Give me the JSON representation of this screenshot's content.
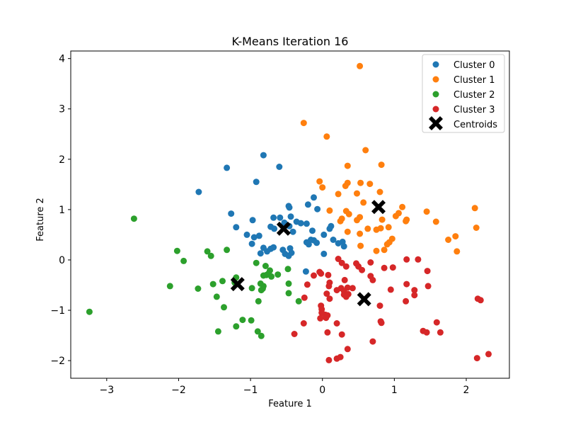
{
  "chart_data": {
    "type": "scatter",
    "title": "K-Means Iteration 16",
    "xlabel": "Feature 1",
    "ylabel": "Feature 2",
    "xlim": [
      -3.5,
      2.6
    ],
    "ylim": [
      -2.35,
      4.15
    ],
    "xticks": [
      -3,
      -2,
      -1,
      0,
      1,
      2
    ],
    "yticks": [
      -2,
      -1,
      0,
      1,
      2,
      3,
      4
    ],
    "xtick_labels": [
      "−3",
      "−2",
      "−1",
      "0",
      "1",
      "2"
    ],
    "ytick_labels": [
      "−2",
      "−1",
      "0",
      "1",
      "2",
      "3",
      "4"
    ],
    "grid": false,
    "legend_position": "top-right",
    "series": [
      {
        "name": "Cluster 0",
        "color": "#1f77b4",
        "points": [
          [
            -1.72,
            1.35
          ],
          [
            -1.33,
            1.83
          ],
          [
            -0.92,
            1.55
          ],
          [
            -0.82,
            2.08
          ],
          [
            -0.6,
            1.85
          ],
          [
            -1.27,
            0.92
          ],
          [
            -1.2,
            0.65
          ],
          [
            -1.05,
            0.5
          ],
          [
            -0.98,
            0.32
          ],
          [
            -0.95,
            0.45
          ],
          [
            -0.88,
            0.48
          ],
          [
            -0.97,
            0.79
          ],
          [
            -0.72,
            0.66
          ],
          [
            -0.67,
            0.62
          ],
          [
            -0.68,
            0.84
          ],
          [
            -0.59,
            0.84
          ],
          [
            -0.53,
            0.74
          ],
          [
            -0.46,
            0.67
          ],
          [
            -0.44,
            0.86
          ],
          [
            -0.47,
            1.07
          ],
          [
            -0.46,
            1.04
          ],
          [
            -0.41,
            0.56
          ],
          [
            -0.36,
            0.76
          ],
          [
            -0.3,
            0.73
          ],
          [
            -0.22,
            0.72
          ],
          [
            -0.2,
            1.1
          ],
          [
            -0.12,
            1.24
          ],
          [
            -0.07,
            1.01
          ],
          [
            -0.14,
            0.58
          ],
          [
            0.02,
            0.5
          ],
          [
            0.1,
            0.62
          ],
          [
            0.12,
            0.67
          ],
          [
            -0.22,
            0.35
          ],
          [
            -0.19,
            0.31
          ],
          [
            -0.16,
            0.4
          ],
          [
            -0.12,
            0.39
          ],
          [
            -0.08,
            0.34
          ],
          [
            0.02,
            0.12
          ],
          [
            0.15,
            0.4
          ],
          [
            0.22,
            0.33
          ],
          [
            0.28,
            0.36
          ],
          [
            0.3,
            0.27
          ],
          [
            -0.82,
            0.24
          ],
          [
            -0.77,
            0.17
          ],
          [
            -0.72,
            0.22
          ],
          [
            -0.68,
            0.25
          ],
          [
            -0.86,
            0.13
          ],
          [
            -0.52,
            0.12
          ],
          [
            -0.47,
            0.08
          ],
          [
            -0.45,
            0.23
          ],
          [
            -0.43,
            0.14
          ],
          [
            -0.55,
            0.2
          ],
          [
            -0.23,
            -0.23
          ]
        ]
      },
      {
        "name": "Cluster 1",
        "color": "#ff7f0e",
        "points": [
          [
            0.52,
            3.85
          ],
          [
            -0.26,
            2.72
          ],
          [
            0.06,
            2.45
          ],
          [
            0.6,
            2.18
          ],
          [
            0.35,
            1.87
          ],
          [
            0.82,
            1.89
          ],
          [
            -0.04,
            1.56
          ],
          [
            0.0,
            1.44
          ],
          [
            0.35,
            1.53
          ],
          [
            0.32,
            1.47
          ],
          [
            0.53,
            1.53
          ],
          [
            0.66,
            1.51
          ],
          [
            0.22,
            1.31
          ],
          [
            0.8,
            1.35
          ],
          [
            0.48,
            1.32
          ],
          [
            0.1,
            0.98
          ],
          [
            0.33,
            0.97
          ],
          [
            0.57,
            1.14
          ],
          [
            0.48,
            0.79
          ],
          [
            0.27,
            0.82
          ],
          [
            0.25,
            0.77
          ],
          [
            0.37,
            0.91
          ],
          [
            0.52,
            0.85
          ],
          [
            0.35,
            0.56
          ],
          [
            0.52,
            0.52
          ],
          [
            0.63,
            0.62
          ],
          [
            0.75,
            0.6
          ],
          [
            0.81,
            0.63
          ],
          [
            0.83,
            0.8
          ],
          [
            0.92,
            0.65
          ],
          [
            1.02,
            0.87
          ],
          [
            1.06,
            0.93
          ],
          [
            1.11,
            1.05
          ],
          [
            1.17,
            0.8
          ],
          [
            1.16,
            0.77
          ],
          [
            1.45,
            0.96
          ],
          [
            1.58,
            0.76
          ],
          [
            0.97,
            0.42
          ],
          [
            0.93,
            0.35
          ],
          [
            0.9,
            0.31
          ],
          [
            0.86,
            0.2
          ],
          [
            0.75,
            0.18
          ],
          [
            0.53,
            0.28
          ],
          [
            1.75,
            0.4
          ],
          [
            1.85,
            0.47
          ],
          [
            1.87,
            0.17
          ],
          [
            2.12,
            1.03
          ],
          [
            2.14,
            0.64
          ]
        ]
      },
      {
        "name": "Cluster 2",
        "color": "#2ca02c",
        "points": [
          [
            -2.62,
            0.82
          ],
          [
            -2.02,
            0.18
          ],
          [
            -1.93,
            -0.02
          ],
          [
            -1.6,
            0.17
          ],
          [
            -1.55,
            0.08
          ],
          [
            -1.33,
            0.2
          ],
          [
            -0.92,
            -0.06
          ],
          [
            -0.79,
            -0.12
          ],
          [
            -0.73,
            -0.21
          ],
          [
            -0.75,
            -0.27
          ],
          [
            -0.78,
            -0.3
          ],
          [
            -0.82,
            -0.31
          ],
          [
            -0.71,
            -0.33
          ],
          [
            -0.62,
            -0.29
          ],
          [
            -0.48,
            -0.18
          ],
          [
            -0.86,
            -0.47
          ],
          [
            -0.82,
            -0.52
          ],
          [
            -0.83,
            -0.57
          ],
          [
            -0.85,
            -0.6
          ],
          [
            -1.2,
            -0.35
          ],
          [
            -1.22,
            -0.45
          ],
          [
            -1.39,
            -0.42
          ],
          [
            -1.52,
            -0.48
          ],
          [
            -1.47,
            -0.73
          ],
          [
            -1.37,
            -0.94
          ],
          [
            -1.73,
            -0.57
          ],
          [
            -2.12,
            -0.52
          ],
          [
            -0.98,
            -0.56
          ],
          [
            -0.89,
            -0.82
          ],
          [
            -0.47,
            -0.66
          ],
          [
            -0.47,
            -0.47
          ],
          [
            -0.33,
            -0.82
          ],
          [
            -0.99,
            -1.2
          ],
          [
            -1.11,
            -1.19
          ],
          [
            -1.2,
            -1.32
          ],
          [
            -1.45,
            -1.42
          ],
          [
            -0.9,
            -1.42
          ],
          [
            -0.85,
            -1.51
          ],
          [
            -3.24,
            -1.03
          ]
        ]
      },
      {
        "name": "Cluster 3",
        "color": "#d62728",
        "points": [
          [
            0.22,
            0.02
          ],
          [
            0.27,
            -0.06
          ],
          [
            0.33,
            -0.13
          ],
          [
            0.47,
            -0.07
          ],
          [
            0.5,
            -0.13
          ],
          [
            0.55,
            -0.2
          ],
          [
            0.67,
            -0.05
          ],
          [
            0.86,
            -0.16
          ],
          [
            0.98,
            -0.15
          ],
          [
            1.17,
            0.01
          ],
          [
            1.33,
            0.01
          ],
          [
            1.46,
            -0.22
          ],
          [
            -0.12,
            -0.31
          ],
          [
            -0.02,
            -0.27
          ],
          [
            -0.04,
            -0.24
          ],
          [
            0.08,
            -0.3
          ],
          [
            0.1,
            -0.45
          ],
          [
            0.09,
            -0.52
          ],
          [
            -0.21,
            -0.49
          ],
          [
            0.31,
            -0.4
          ],
          [
            0.2,
            -0.6
          ],
          [
            0.26,
            -0.56
          ],
          [
            0.3,
            -0.62
          ],
          [
            0.35,
            -0.55
          ],
          [
            0.42,
            -0.56
          ],
          [
            0.36,
            -0.68
          ],
          [
            0.3,
            -0.69
          ],
          [
            0.33,
            -0.73
          ],
          [
            0.67,
            -0.32
          ],
          [
            0.7,
            -0.4
          ],
          [
            0.06,
            -0.67
          ],
          [
            0.1,
            -0.77
          ],
          [
            -0.25,
            -0.75
          ],
          [
            -0.02,
            -0.91
          ],
          [
            -0.01,
            -0.98
          ],
          [
            -0.01,
            -1.05
          ],
          [
            0.04,
            -1.09
          ],
          [
            0.05,
            -1.15
          ],
          [
            0.07,
            -1.1
          ],
          [
            -0.03,
            -1.16
          ],
          [
            0.2,
            -1.26
          ],
          [
            -0.26,
            -1.26
          ],
          [
            -0.39,
            -1.47
          ],
          [
            0.07,
            -1.44
          ],
          [
            0.27,
            -1.48
          ],
          [
            0.8,
            -0.91
          ],
          [
            0.95,
            -0.59
          ],
          [
            1.17,
            -0.48
          ],
          [
            1.28,
            -0.6
          ],
          [
            1.28,
            -0.7
          ],
          [
            1.16,
            -0.82
          ],
          [
            1.47,
            -0.52
          ],
          [
            1.59,
            -1.24
          ],
          [
            1.4,
            -1.41
          ],
          [
            1.45,
            -1.44
          ],
          [
            1.64,
            -1.44
          ],
          [
            0.81,
            -1.22
          ],
          [
            0.82,
            -1.25
          ],
          [
            0.7,
            -1.62
          ],
          [
            0.35,
            -1.77
          ],
          [
            0.25,
            -1.93
          ],
          [
            0.2,
            -1.96
          ],
          [
            0.09,
            -1.99
          ],
          [
            2.16,
            -0.77
          ],
          [
            2.2,
            -0.8
          ],
          [
            2.15,
            -1.95
          ],
          [
            2.31,
            -1.87
          ]
        ]
      }
    ],
    "centroids": {
      "name": "Centroids",
      "color": "#000000",
      "points": [
        [
          -0.54,
          0.62
        ],
        [
          0.78,
          1.05
        ],
        [
          -1.18,
          -0.48
        ],
        [
          0.58,
          -0.78
        ]
      ]
    }
  }
}
